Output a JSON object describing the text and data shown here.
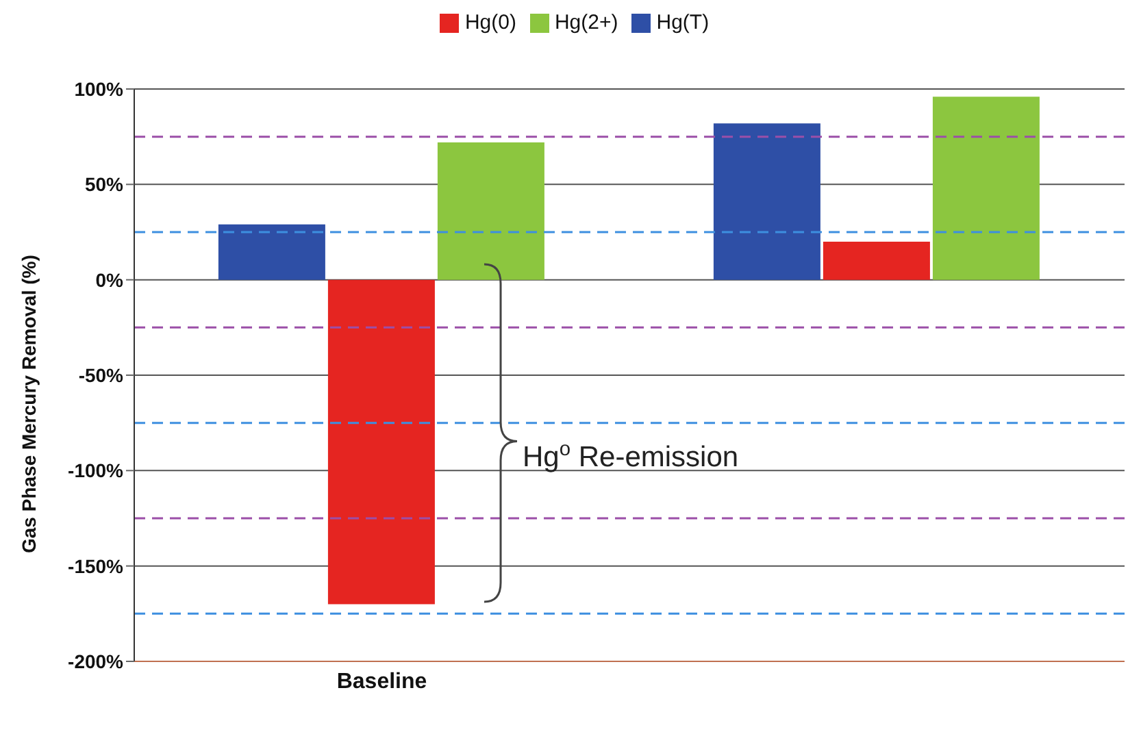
{
  "chart_data": {
    "type": "bar",
    "ylabel": "Gas Phase Mercury Removal (%)",
    "categories": [
      "Baseline",
      null
    ],
    "series": [
      {
        "name": "Hg(T)",
        "color": "#2e4fa6",
        "values": [
          29,
          82
        ]
      },
      {
        "name": "Hg(0)",
        "color": "#e52521",
        "values": [
          -170,
          20
        ]
      },
      {
        "name": "Hg(2+)",
        "color": "#8cc63f",
        "values": [
          72,
          96
        ]
      }
    ],
    "ylim": [
      -200,
      100
    ],
    "yticks": [
      {
        "value": -200,
        "label": "-200%"
      },
      {
        "value": -150,
        "label": "-150%"
      },
      {
        "value": -100,
        "label": "-100%"
      },
      {
        "value": -50,
        "label": "-50%"
      },
      {
        "value": 0,
        "label": "0%"
      },
      {
        "value": 50,
        "label": "50%"
      },
      {
        "value": 100,
        "label": "100%"
      }
    ],
    "ref_lines": [
      {
        "axis": "y",
        "value": 75,
        "color": "#9b4fa8",
        "line_style": "dashed"
      },
      {
        "axis": "y",
        "value": 25,
        "color": "#3d8fe0",
        "line_style": "dashed"
      },
      {
        "axis": "y",
        "value": -25,
        "color": "#9b4fa8",
        "line_style": "dashed"
      },
      {
        "axis": "y",
        "value": -75,
        "color": "#3d8fe0",
        "line_style": "dashed"
      },
      {
        "axis": "y",
        "value": -125,
        "color": "#9b4fa8",
        "line_style": "dashed"
      },
      {
        "axis": "y",
        "value": -175,
        "color": "#3d8fe0",
        "line_style": "dashed"
      }
    ],
    "annotations": [
      "Hg$^{o}$ Re-emission"
    ],
    "grid": "y",
    "legend": "top"
  }
}
